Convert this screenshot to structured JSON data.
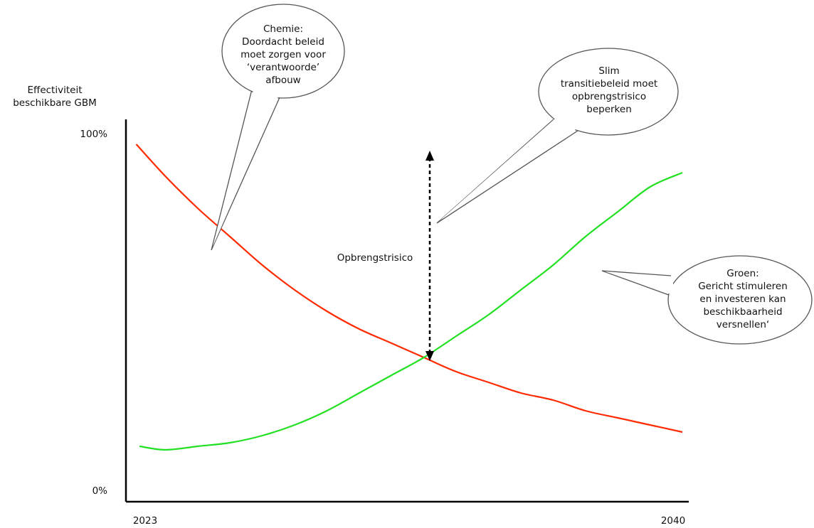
{
  "chart_data": {
    "type": "line",
    "title": "",
    "ylabel": [
      "Effectiviteit",
      "beschikbare GBM"
    ],
    "xlabel": "",
    "x_ticks": [
      "2023",
      "2040"
    ],
    "y_ticks": [
      "0%",
      "100%"
    ],
    "xlim": [
      2023,
      2040
    ],
    "ylim": [
      0,
      100
    ],
    "series": [
      {
        "name": "",
        "color": "#ff2a00",
        "x": [
          2023.1,
          2024,
          2025,
          2026,
          2027,
          2028,
          2029,
          2030,
          2031,
          2032,
          2033,
          2034,
          2035,
          2036,
          2037,
          2038,
          2039,
          2040
        ],
        "y": [
          96,
          87,
          78,
          70,
          62,
          55,
          49,
          44,
          40,
          36,
          32,
          29,
          26,
          24,
          21,
          19,
          17,
          15
        ]
      },
      {
        "name": "",
        "color": "#22e022",
        "x": [
          2023.2,
          2024,
          2025,
          2026,
          2027,
          2028,
          2029,
          2030,
          2031,
          2032,
          2033,
          2034,
          2035,
          2036,
          2037,
          2038,
          2039,
          2040
        ],
        "y": [
          11,
          10,
          11,
          12,
          14,
          17,
          21,
          26,
          31,
          36,
          42,
          48,
          55,
          62,
          70,
          77,
          84,
          88
        ]
      }
    ],
    "annotations": {
      "arrow_label": "Opbrengstrisico",
      "bubble_chemie": [
        "Chemie:",
        "Doordacht beleid",
        "moet zorgen voor",
        "‘verantwoorde’",
        "afbouw"
      ],
      "bubble_slim": [
        "Slim",
        "transitiebeleid moet",
        "opbrengstrisico",
        "beperken"
      ],
      "bubble_groen": [
        "Groen:",
        "Gericht stimuleren",
        "en investeren kan",
        "beschikbaarheid",
        "versnellen‘"
      ]
    },
    "colors": {
      "red": "#ff2a00",
      "green": "#22e022",
      "axis": "#000000"
    },
    "grid": false,
    "legend": "none"
  }
}
